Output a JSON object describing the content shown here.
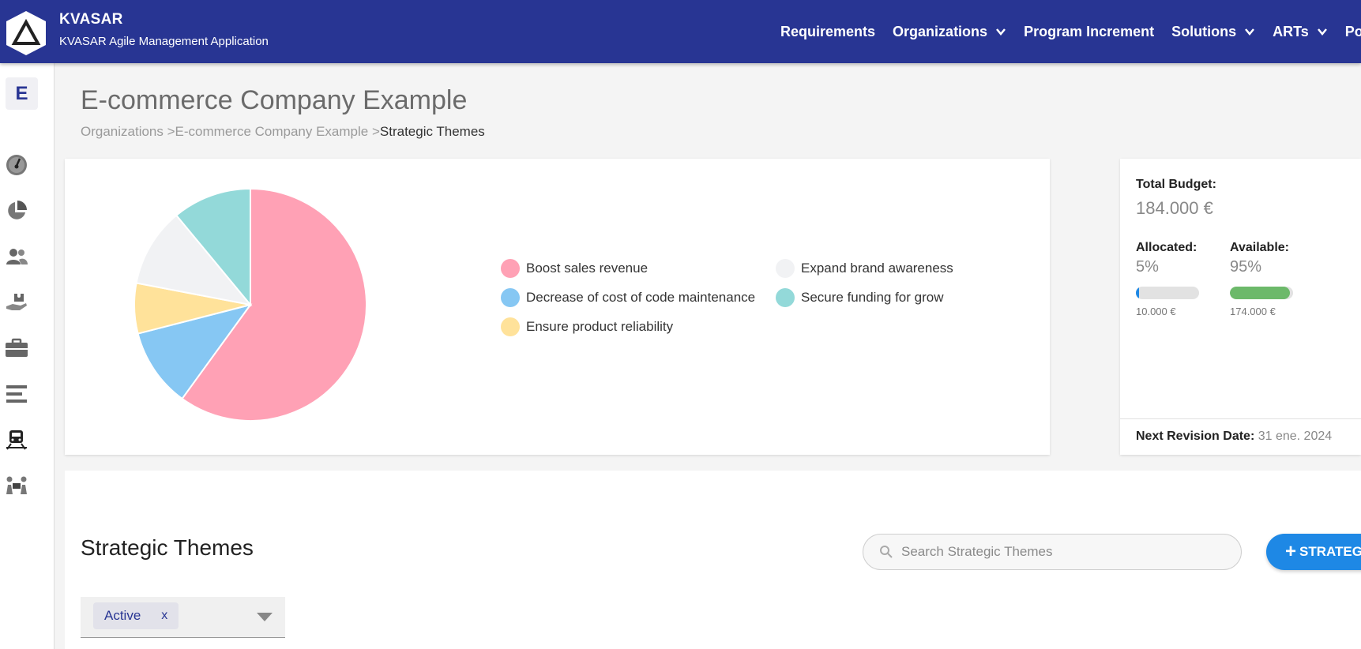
{
  "app": {
    "title": "KVASAR",
    "subtitle": "KVASAR Agile Management Application"
  },
  "nav": {
    "items": [
      {
        "label": "Requirements",
        "dropdown": false
      },
      {
        "label": "Organizations",
        "dropdown": true
      },
      {
        "label": "Program Increment",
        "dropdown": false
      },
      {
        "label": "Solutions",
        "dropdown": true
      },
      {
        "label": "ARTs",
        "dropdown": true
      },
      {
        "label": "Portfolios",
        "dropdown": false
      }
    ]
  },
  "sidebar": {
    "org_letter": "E",
    "icons": [
      "dashboard-gauge-icon",
      "pie-chart-icon",
      "people-icon",
      "puzzle-hand-icon",
      "briefcase-icon",
      "bars-icon",
      "train-icon",
      "team-meeting-icon"
    ]
  },
  "header": {
    "title": "E-commerce Company Example",
    "breadcrumb": {
      "crumb1": "Organizations >",
      "crumb2": "E-commerce Company Example >",
      "current": "Strategic Themes"
    }
  },
  "chart_data": {
    "type": "pie",
    "title": "",
    "series": [
      {
        "name": "Boost sales revenue",
        "value": 60,
        "color": "#ffa1b5"
      },
      {
        "name": "Decrease of cost of code maintenance",
        "value": 11,
        "color": "#86c7f3"
      },
      {
        "name": "Ensure product reliability",
        "value": 7,
        "color": "#ffe29a"
      },
      {
        "name": "Expand brand awareness",
        "value": 11,
        "color": "#f1f2f4"
      },
      {
        "name": "Secure funding for grow",
        "value": 11,
        "color": "#93d9d9"
      }
    ],
    "legend_order": [
      0,
      3,
      1,
      4,
      2
    ],
    "legend_position": "right"
  },
  "budget": {
    "total_label": "Total Budget:",
    "total_value": "184.000 €",
    "allocated_label": "Allocated:",
    "allocated_pct": "5%",
    "allocated_fraction": 0.05,
    "allocated_amount": "10.000 €",
    "allocated_color": "#1e88e5",
    "available_label": "Available:",
    "available_pct": "95%",
    "available_fraction": 0.95,
    "available_amount": "174.000 €",
    "available_color": "#6cb96a",
    "next_revision_label": "Next Revision Date:",
    "next_revision_value": "31 ene. 2024"
  },
  "themes": {
    "title": "Strategic Themes",
    "search_placeholder": "Search Strategic Themes",
    "add_button_label": "STRATEGIC THEME",
    "filter_chip": "Active",
    "filter_chip_remove": "x"
  }
}
